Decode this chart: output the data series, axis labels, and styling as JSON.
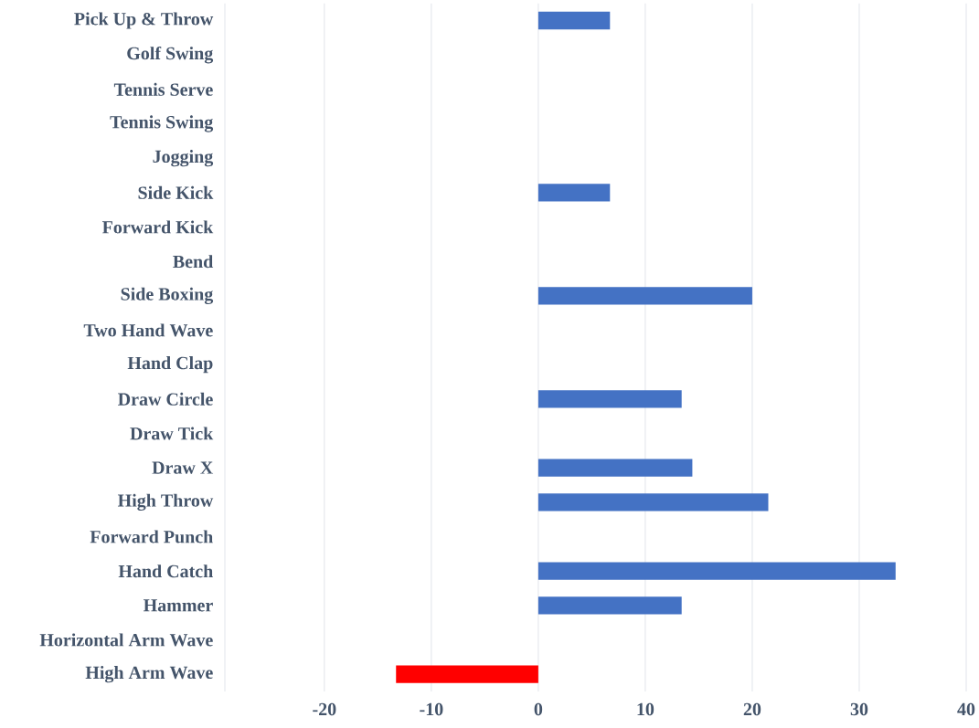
{
  "chart_data": {
    "type": "bar",
    "orientation": "horizontal",
    "categories": [
      "Pick Up & Throw",
      "Golf Swing",
      "Tennis Serve",
      "Tennis Swing",
      "Jogging",
      "Side Kick",
      "Forward Kick",
      "Bend",
      "Side Boxing",
      "Two Hand Wave",
      "Hand Clap",
      "Draw Circle",
      "Draw Tick",
      "Draw X",
      "High Throw",
      "Forward Punch",
      "Hand Catch",
      "Hammer",
      "Horizontal Arm Wave",
      "High Arm Wave"
    ],
    "values": [
      6.7,
      0,
      0,
      0,
      0,
      6.7,
      0,
      0,
      20,
      0,
      0,
      13.4,
      0,
      14.4,
      21.5,
      0,
      33.4,
      13.4,
      0,
      -13.3
    ],
    "colors": [
      "#4472c4",
      "#4472c4",
      "#4472c4",
      "#4472c4",
      "#4472c4",
      "#4472c4",
      "#4472c4",
      "#4472c4",
      "#4472c4",
      "#4472c4",
      "#4472c4",
      "#4472c4",
      "#4472c4",
      "#4472c4",
      "#4472c4",
      "#4472c4",
      "#4472c4",
      "#4472c4",
      "#4472c4",
      "#ff0000"
    ],
    "xlim": [
      -29.3,
      40
    ],
    "xticks": [
      {
        "value": -29.3,
        "label": null
      },
      -20,
      -10,
      0,
      10,
      20,
      30,
      40
    ],
    "grid": "x"
  }
}
